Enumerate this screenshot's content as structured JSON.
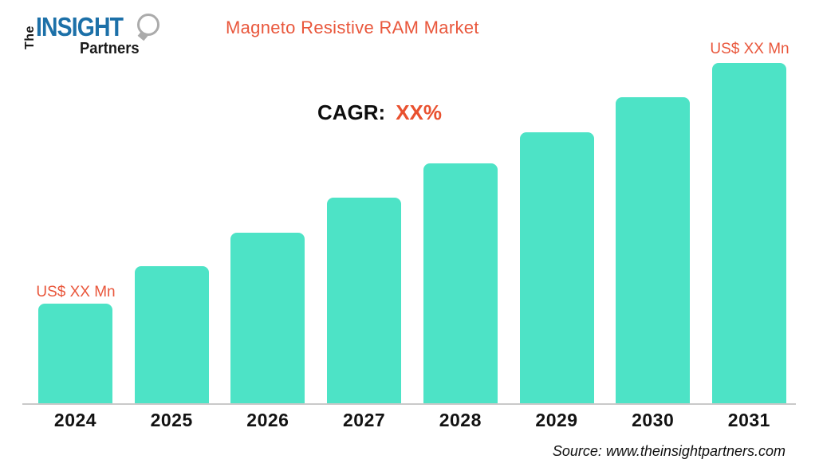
{
  "header": {
    "logo": {
      "the": "The",
      "insight": "INSIGHT",
      "partners": "Partners"
    },
    "title": "Magneto Resistive RAM Market"
  },
  "cagr": {
    "label": "CAGR:",
    "value": "XX%"
  },
  "chart_data": {
    "type": "bar",
    "title": "Magneto Resistive RAM Market",
    "categories": [
      "2024",
      "2025",
      "2026",
      "2027",
      "2028",
      "2029",
      "2030",
      "2031"
    ],
    "values": [
      125,
      172,
      214,
      258,
      301,
      340,
      384,
      427
    ],
    "values_note": "bar heights in px; actual market values masked as XX on the chart",
    "first_bar_label": "US$ XX Mn",
    "last_bar_label": "US$ XX Mn",
    "bar_color": "#4DE3C6",
    "xlabel": "",
    "ylabel": "",
    "grid": false,
    "legend": false,
    "baseline_color": "#C9C9C9"
  },
  "footer": {
    "source": "Source: www.theinsightpartners.com"
  },
  "colors": {
    "accent_orange": "#E9573C",
    "bar_teal": "#4DE3C6",
    "logo_blue": "#1C70A8",
    "axis_gray": "#C9C9C9"
  }
}
